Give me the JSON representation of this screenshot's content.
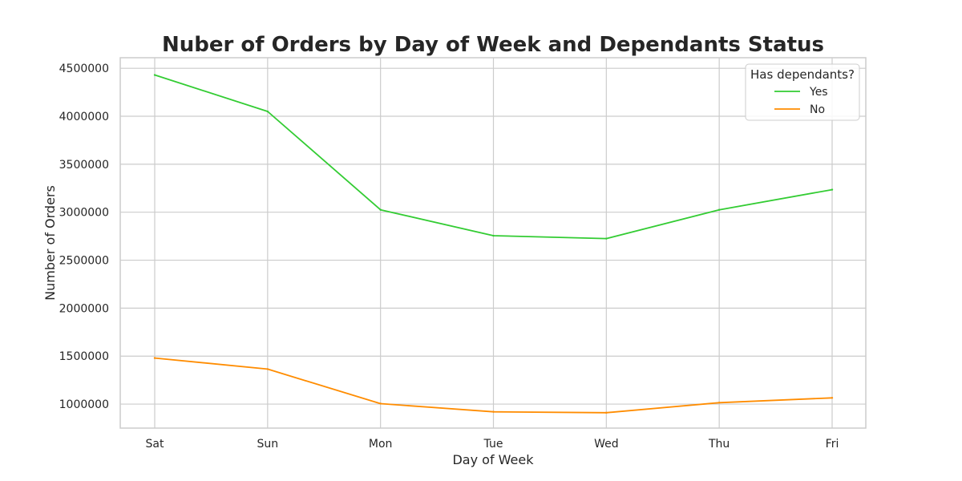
{
  "chart_data": {
    "type": "line",
    "title": "Nuber of Orders by Day of Week and Dependants Status",
    "xlabel": "Day of Week",
    "ylabel": "Number of Orders",
    "categories": [
      "Sat",
      "Sun",
      "Mon",
      "Tue",
      "Wed",
      "Thu",
      "Fri"
    ],
    "ylim": [
      750000,
      4610000
    ],
    "yticks": [
      1000000,
      1500000,
      2000000,
      2500000,
      3000000,
      3500000,
      4000000,
      4500000
    ],
    "ytick_labels": [
      "1000000",
      "1500000",
      "2000000",
      "2500000",
      "3000000",
      "3500000",
      "4000000",
      "4500000"
    ],
    "grid": true,
    "legend": {
      "title": "Has dependants?",
      "placement": "top-right"
    },
    "series": [
      {
        "name": "Yes",
        "color": "#33cc33",
        "values": [
          4430000,
          4050000,
          3025000,
          2755000,
          2725000,
          3025000,
          3235000
        ]
      },
      {
        "name": "No",
        "color": "#ff8c00",
        "values": [
          1480000,
          1365000,
          1005000,
          920000,
          910000,
          1015000,
          1065000
        ]
      }
    ]
  }
}
